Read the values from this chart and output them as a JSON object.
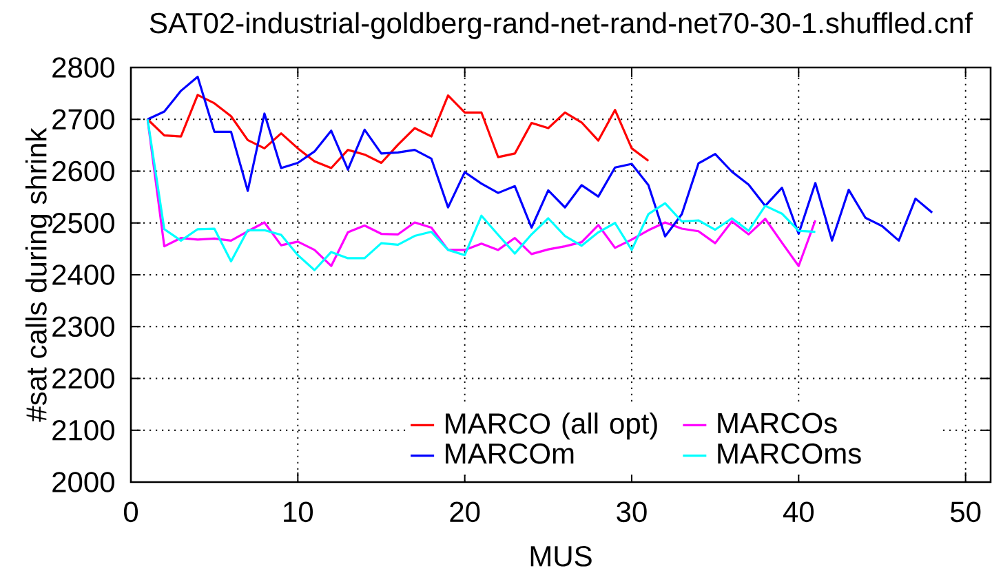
{
  "chart_data": {
    "type": "line",
    "title": "SAT02-industrial-goldberg-rand-net-rand-net70-30-1.shuffled.cnf",
    "xlabel": "MUS",
    "ylabel": "#sat calls during shrink",
    "xlim": [
      0,
      51.5
    ],
    "xticks": [
      0,
      10,
      20,
      30,
      40,
      50
    ],
    "ylim": [
      2000,
      2800
    ],
    "yticks": [
      2000,
      2100,
      2200,
      2300,
      2400,
      2500,
      2600,
      2700,
      2800
    ],
    "grid": true,
    "legend": "bottom right",
    "marker": "none",
    "line_style": "solid",
    "series": [
      {
        "name": "MARCO (all opt)",
        "color": "#ff0000",
        "x": [
          1,
          2,
          3,
          4,
          5,
          6,
          7,
          8,
          9,
          10,
          11,
          12,
          13,
          14,
          15,
          16,
          17,
          18,
          19,
          20,
          21,
          22,
          23,
          24,
          25,
          26,
          27,
          28,
          29,
          30,
          31
        ],
        "values": [
          2700,
          2669,
          2667,
          2747,
          2731,
          2706,
          2660,
          2644,
          2673,
          2644,
          2619,
          2606,
          2641,
          2632,
          2616,
          2651,
          2683,
          2667,
          2746,
          2713,
          2713,
          2627,
          2634,
          2693,
          2683,
          2713,
          2694,
          2659,
          2718,
          2644,
          2620
        ]
      },
      {
        "name": "MARCOs",
        "color": "#ff00ff",
        "x": [
          1,
          2,
          3,
          4,
          5,
          6,
          7,
          8,
          9,
          10,
          11,
          12,
          13,
          14,
          15,
          16,
          17,
          18,
          19,
          20,
          21,
          22,
          23,
          24,
          25,
          26,
          27,
          28,
          29,
          30,
          31,
          32,
          33,
          34,
          35,
          36,
          37,
          38,
          39,
          40,
          41
        ],
        "values": [
          2700,
          2455,
          2471,
          2468,
          2470,
          2466,
          2484,
          2501,
          2457,
          2464,
          2448,
          2417,
          2482,
          2495,
          2479,
          2478,
          2501,
          2491,
          2448,
          2448,
          2460,
          2448,
          2471,
          2440,
          2449,
          2455,
          2463,
          2496,
          2452,
          2468,
          2486,
          2501,
          2489,
          2484,
          2461,
          2503,
          2478,
          2508,
          2462,
          2417,
          2505
        ]
      },
      {
        "name": "MARCOm",
        "color": "#0000ff",
        "x": [
          1,
          2,
          3,
          4,
          5,
          6,
          7,
          8,
          9,
          10,
          11,
          12,
          13,
          14,
          15,
          16,
          17,
          18,
          19,
          20,
          21,
          22,
          23,
          24,
          25,
          26,
          27,
          28,
          29,
          30,
          31,
          32,
          33,
          34,
          35,
          36,
          37,
          38,
          39,
          40,
          41,
          42,
          43,
          44,
          45,
          46,
          47,
          48
        ],
        "values": [
          2700,
          2715,
          2755,
          2782,
          2676,
          2676,
          2562,
          2711,
          2606,
          2616,
          2638,
          2678,
          2603,
          2680,
          2634,
          2636,
          2641,
          2624,
          2530,
          2598,
          2576,
          2558,
          2571,
          2491,
          2563,
          2530,
          2573,
          2551,
          2607,
          2614,
          2573,
          2474,
          2517,
          2615,
          2633,
          2599,
          2574,
          2533,
          2568,
          2479,
          2577,
          2466,
          2564,
          2510,
          2494,
          2466,
          2547,
          2520
        ]
      },
      {
        "name": "MARCOms",
        "color": "#00ffff",
        "x": [
          1,
          2,
          3,
          4,
          5,
          6,
          7,
          8,
          9,
          10,
          11,
          12,
          13,
          14,
          15,
          16,
          17,
          18,
          19,
          20,
          21,
          22,
          23,
          24,
          25,
          26,
          27,
          28,
          29,
          30,
          31,
          32,
          33,
          34,
          35,
          36,
          37,
          38,
          39,
          40,
          41
        ],
        "values": [
          2700,
          2488,
          2466,
          2488,
          2489,
          2426,
          2486,
          2486,
          2477,
          2438,
          2409,
          2444,
          2432,
          2432,
          2461,
          2458,
          2475,
          2483,
          2448,
          2438,
          2514,
          2477,
          2441,
          2478,
          2509,
          2475,
          2456,
          2482,
          2500,
          2448,
          2517,
          2538,
          2503,
          2505,
          2487,
          2509,
          2485,
          2533,
          2518,
          2485,
          2483
        ]
      }
    ]
  }
}
